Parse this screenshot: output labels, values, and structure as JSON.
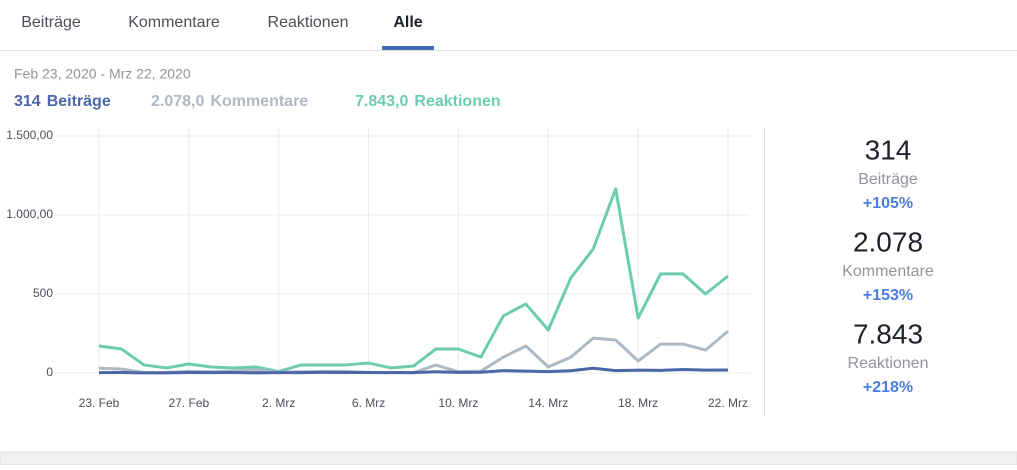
{
  "tabs": [
    "Beiträge",
    "Kommentare",
    "Reaktionen",
    "Alle"
  ],
  "active_tab": 3,
  "date_range": "Feb 23, 2020 - Mrz 22, 2020",
  "summary": [
    "314",
    "2.078,0",
    "7.843,0"
  ],
  "stats": [
    {
      "value": "314",
      "change": "+105%"
    },
    {
      "value": "2.078",
      "change": "+153%"
    },
    {
      "value": "7.843",
      "change": "+218%"
    }
  ],
  "chart_data": {
    "type": "line",
    "categories": [
      "23. Feb",
      null,
      null,
      null,
      "27. Feb",
      null,
      null,
      null,
      "2. Mrz",
      null,
      null,
      null,
      "6. Mrz",
      null,
      null,
      null,
      "10. Mrz",
      null,
      null,
      null,
      "14. Mrz",
      null,
      null,
      null,
      "18. Mrz",
      null,
      null,
      null,
      "22. Mrz"
    ],
    "series": [
      {
        "name": "Beiträge",
        "color": "#4b67a8",
        "values": [
          2,
          3,
          1,
          1,
          3,
          2,
          3,
          1,
          2,
          2,
          4,
          3,
          3,
          2,
          2,
          8,
          4,
          5,
          15,
          12,
          9,
          14,
          30,
          15,
          18,
          17,
          22,
          18,
          19
        ]
      },
      {
        "name": "Kommentare",
        "color": "#aeb9c3",
        "values": [
          30,
          25,
          3,
          3,
          10,
          8,
          12,
          20,
          5,
          8,
          10,
          10,
          3,
          3,
          2,
          50,
          8,
          12,
          100,
          171,
          38,
          100,
          221,
          209,
          76,
          183,
          183,
          145,
          265
        ]
      },
      {
        "name": "Reaktionen",
        "color": "#6ccbb0",
        "values": [
          171,
          152,
          51,
          32,
          57,
          38,
          32,
          38,
          10,
          51,
          51,
          51,
          63,
          32,
          44,
          152,
          152,
          101,
          361,
          437,
          272,
          601,
          785,
          1165,
          348,
          627,
          627,
          500,
          614
        ]
      }
    ],
    "ylim": [
      0,
      1500
    ],
    "yticks": [
      0,
      500,
      {
        "value": 1000,
        "label": "1.000,00"
      },
      {
        "value": 1500,
        "label": "1.500,00"
      }
    ],
    "grid": true
  }
}
